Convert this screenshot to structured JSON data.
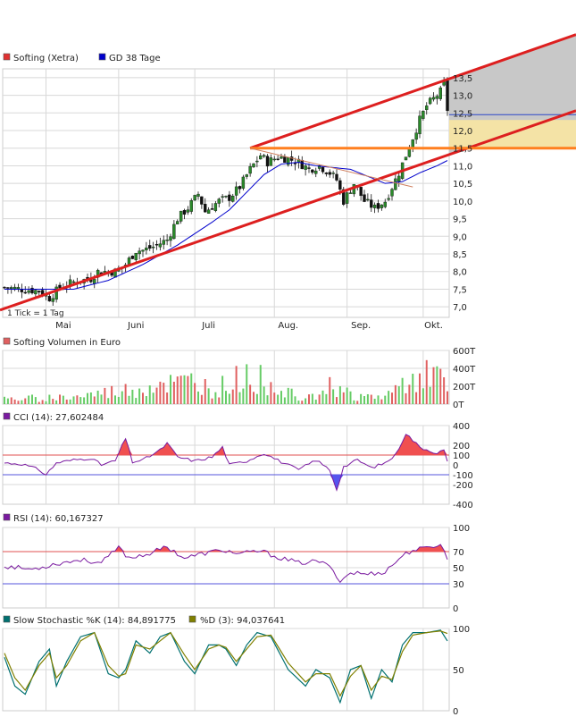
{
  "colors": {
    "price_legend": "#e03030",
    "ma_legend": "#0000cc",
    "up_candle": "#2a8a2a",
    "down_candle": "#111111",
    "ma_line": "#0000cc",
    "channel": "#dd1f1f",
    "horizontal_line": "#ff7f1f",
    "shade_gray": "#c8c8c8",
    "shade_yellow": "#f4e3a6",
    "volume_up": "#66cc66",
    "volume_down": "#e06060",
    "indicator_line": "#7a1aa0",
    "cci_fill_pos": "#f05050",
    "cci_fill_neg": "#5555ee",
    "stoch_k": "#007070",
    "stoch_d": "#808000",
    "ref_red": "#e05050",
    "ref_blue": "#5555dd",
    "grid": "#d8d8d8"
  },
  "price_panel": {
    "legend_price": "Softing (Xetra)",
    "legend_ma": "GD 38 Tage",
    "tick_note": "1 Tick = 1 Tag",
    "y_ticks": [
      "13,5",
      "13,0",
      "12,5",
      "12,0",
      "11,5",
      "11,0",
      "10,5",
      "10,0",
      "9,5",
      "9,0",
      "8,5",
      "8,0",
      "7,5",
      "7,0"
    ],
    "x_ticks": [
      "Mai",
      "Juni",
      "Juli",
      "Aug.",
      "Sep.",
      "Okt."
    ]
  },
  "volume_panel": {
    "legend": "Softing Volumen in Euro",
    "y_ticks": [
      "600T",
      "400T",
      "200T",
      "0T"
    ]
  },
  "cci_panel": {
    "legend": "CCI (14): 27,602484",
    "y_ticks": [
      "400",
      "200",
      "100",
      "0",
      "-100",
      "-200",
      "-400"
    ]
  },
  "rsi_panel": {
    "legend": "RSI (14): 60,167327",
    "y_ticks": [
      "100",
      "70",
      "50",
      "30",
      "0"
    ]
  },
  "stoch_panel": {
    "legend_k": "Slow Stochastic %K (14): 84,891775",
    "legend_d": "%D (3): 94,037641",
    "y_ticks": [
      "100",
      "50",
      "0"
    ]
  },
  "chart_data": [
    {
      "type": "candlestick",
      "title": "Softing (Xetra)",
      "x_range": [
        "mid-April",
        "early October"
      ],
      "ylim": [
        6.7,
        13.75
      ],
      "months": [
        "Mai",
        "Juni",
        "Juli",
        "Aug.",
        "Sep.",
        "Okt."
      ],
      "close_path": [
        [
          0,
          7.55
        ],
        [
          5,
          7.5
        ],
        [
          10,
          7.45
        ],
        [
          13,
          7.25
        ],
        [
          16,
          7.55
        ],
        [
          20,
          7.7
        ],
        [
          25,
          7.8
        ],
        [
          27,
          8.0
        ],
        [
          32,
          8.0
        ],
        [
          35,
          8.2
        ],
        [
          38,
          8.6
        ],
        [
          40,
          8.6
        ],
        [
          43,
          8.7
        ],
        [
          47,
          8.9
        ],
        [
          50,
          9.5
        ],
        [
          53,
          9.8
        ],
        [
          56,
          10.2
        ],
        [
          58,
          9.7
        ],
        [
          62,
          10.0
        ],
        [
          65,
          10.1
        ],
        [
          68,
          10.4
        ],
        [
          71,
          10.9
        ],
        [
          74,
          11.3
        ],
        [
          76,
          11.1
        ],
        [
          79,
          11.25
        ],
        [
          82,
          11.2
        ],
        [
          85,
          11.1
        ],
        [
          88,
          10.9
        ],
        [
          91,
          11.0
        ],
        [
          94,
          10.8
        ],
        [
          96,
          10.6
        ],
        [
          98,
          10.0
        ],
        [
          101,
          10.5
        ],
        [
          104,
          10.0
        ],
        [
          107,
          9.8
        ],
        [
          110,
          10.0
        ],
        [
          112,
          10.4
        ],
        [
          114,
          10.8
        ],
        [
          116,
          11.3
        ],
        [
          118,
          11.8
        ],
        [
          120,
          12.3
        ],
        [
          122,
          12.7
        ],
        [
          124,
          12.9
        ],
        [
          126,
          13.1
        ],
        [
          127,
          13.3
        ],
        [
          128,
          12.6
        ]
      ],
      "moving_average": {
        "name": "GD 38 Tage",
        "path": [
          [
            0,
            7.5
          ],
          [
            20,
            7.5
          ],
          [
            30,
            7.75
          ],
          [
            40,
            8.2
          ],
          [
            50,
            8.75
          ],
          [
            60,
            9.4
          ],
          [
            65,
            9.75
          ],
          [
            70,
            10.25
          ],
          [
            75,
            10.75
          ],
          [
            80,
            11.05
          ],
          [
            85,
            11.1
          ],
          [
            90,
            11.0
          ],
          [
            95,
            10.95
          ],
          [
            100,
            10.9
          ],
          [
            105,
            10.7
          ],
          [
            110,
            10.5
          ],
          [
            115,
            10.55
          ],
          [
            120,
            10.8
          ],
          [
            125,
            11.0
          ],
          [
            128,
            11.15
          ]
        ]
      },
      "channel_upper": [
        [
          71,
          11.5
        ],
        [
          128,
          13.45
        ]
      ],
      "channel_lower": [
        [
          0,
          6.95
        ],
        [
          128,
          11.3
        ]
      ],
      "horizontal_level": 11.5
    },
    {
      "type": "bar",
      "title": "Softing Volumen in Euro",
      "ylim": [
        0,
        600
      ],
      "unit": "T",
      "profile": [
        [
          0,
          60
        ],
        [
          10,
          80
        ],
        [
          20,
          90
        ],
        [
          30,
          150
        ],
        [
          40,
          200
        ],
        [
          45,
          280
        ],
        [
          50,
          250
        ],
        [
          55,
          300
        ],
        [
          60,
          180
        ],
        [
          65,
          260
        ],
        [
          70,
          380
        ],
        [
          75,
          300
        ],
        [
          80,
          200
        ],
        [
          85,
          120
        ],
        [
          90,
          150
        ],
        [
          95,
          250
        ],
        [
          100,
          120
        ],
        [
          105,
          90
        ],
        [
          110,
          100
        ],
        [
          115,
          250
        ],
        [
          120,
          450
        ],
        [
          125,
          350
        ],
        [
          128,
          200
        ]
      ]
    },
    {
      "type": "area",
      "title": "CCI (14)",
      "ylim": [
        -400,
        400
      ],
      "reference_lines": [
        100,
        -100
      ],
      "path": [
        [
          0,
          20
        ],
        [
          5,
          10
        ],
        [
          10,
          -50
        ],
        [
          12,
          -100
        ],
        [
          15,
          20
        ],
        [
          20,
          50
        ],
        [
          25,
          70
        ],
        [
          28,
          0
        ],
        [
          32,
          40
        ],
        [
          35,
          270
        ],
        [
          37,
          30
        ],
        [
          40,
          50
        ],
        [
          45,
          150
        ],
        [
          47,
          220
        ],
        [
          50,
          80
        ],
        [
          55,
          40
        ],
        [
          60,
          80
        ],
        [
          63,
          180
        ],
        [
          65,
          0
        ],
        [
          70,
          40
        ],
        [
          75,
          120
        ],
        [
          80,
          30
        ],
        [
          85,
          -50
        ],
        [
          90,
          50
        ],
        [
          94,
          -50
        ],
        [
          96,
          -250
        ],
        [
          98,
          -20
        ],
        [
          102,
          50
        ],
        [
          106,
          -30
        ],
        [
          110,
          20
        ],
        [
          113,
          100
        ],
        [
          116,
          320
        ],
        [
          120,
          180
        ],
        [
          125,
          120
        ],
        [
          127,
          150
        ],
        [
          128,
          27.6
        ]
      ]
    },
    {
      "type": "line",
      "title": "RSI (14)",
      "ylim": [
        0,
        100
      ],
      "reference_lines": [
        70,
        30
      ],
      "path": [
        [
          0,
          52
        ],
        [
          8,
          48
        ],
        [
          15,
          55
        ],
        [
          22,
          60
        ],
        [
          28,
          56
        ],
        [
          33,
          75
        ],
        [
          36,
          62
        ],
        [
          42,
          68
        ],
        [
          47,
          76
        ],
        [
          52,
          62
        ],
        [
          58,
          68
        ],
        [
          63,
          72
        ],
        [
          68,
          67
        ],
        [
          74,
          71
        ],
        [
          79,
          63
        ],
        [
          85,
          56
        ],
        [
          91,
          58
        ],
        [
          95,
          48
        ],
        [
          97,
          33
        ],
        [
          100,
          44
        ],
        [
          105,
          42
        ],
        [
          110,
          45
        ],
        [
          115,
          65
        ],
        [
          118,
          72
        ],
        [
          122,
          74
        ],
        [
          126,
          80
        ],
        [
          128,
          60.2
        ]
      ]
    },
    {
      "type": "line",
      "title": "Slow Stochastic",
      "ylim": [
        0,
        100
      ],
      "series": [
        {
          "name": "Slow Stochastic %K (14)",
          "path": [
            [
              0,
              65
            ],
            [
              3,
              30
            ],
            [
              6,
              20
            ],
            [
              10,
              60
            ],
            [
              13,
              75
            ],
            [
              15,
              30
            ],
            [
              18,
              60
            ],
            [
              22,
              90
            ],
            [
              26,
              95
            ],
            [
              30,
              45
            ],
            [
              33,
              40
            ],
            [
              35,
              50
            ],
            [
              38,
              85
            ],
            [
              42,
              70
            ],
            [
              45,
              90
            ],
            [
              48,
              95
            ],
            [
              52,
              60
            ],
            [
              55,
              45
            ],
            [
              59,
              80
            ],
            [
              62,
              80
            ],
            [
              64,
              75
            ],
            [
              67,
              55
            ],
            [
              70,
              80
            ],
            [
              73,
              95
            ],
            [
              77,
              90
            ],
            [
              82,
              50
            ],
            [
              87,
              30
            ],
            [
              90,
              50
            ],
            [
              94,
              40
            ],
            [
              97,
              10
            ],
            [
              100,
              50
            ],
            [
              103,
              55
            ],
            [
              106,
              15
            ],
            [
              109,
              50
            ],
            [
              112,
              35
            ],
            [
              115,
              80
            ],
            [
              118,
              95
            ],
            [
              122,
              95
            ],
            [
              126,
              98
            ],
            [
              128,
              84.9
            ]
          ]
        },
        {
          "name": "%D (3)",
          "path": [
            [
              0,
              70
            ],
            [
              3,
              40
            ],
            [
              6,
              25
            ],
            [
              10,
              55
            ],
            [
              13,
              70
            ],
            [
              15,
              40
            ],
            [
              18,
              55
            ],
            [
              22,
              85
            ],
            [
              26,
              95
            ],
            [
              30,
              55
            ],
            [
              33,
              42
            ],
            [
              35,
              45
            ],
            [
              38,
              80
            ],
            [
              42,
              75
            ],
            [
              45,
              85
            ],
            [
              48,
              95
            ],
            [
              52,
              68
            ],
            [
              55,
              50
            ],
            [
              59,
              75
            ],
            [
              62,
              80
            ],
            [
              64,
              77
            ],
            [
              67,
              60
            ],
            [
              70,
              75
            ],
            [
              73,
              90
            ],
            [
              77,
              92
            ],
            [
              82,
              58
            ],
            [
              87,
              35
            ],
            [
              90,
              45
            ],
            [
              94,
              45
            ],
            [
              97,
              18
            ],
            [
              100,
              42
            ],
            [
              103,
              55
            ],
            [
              106,
              25
            ],
            [
              109,
              42
            ],
            [
              112,
              38
            ],
            [
              115,
              72
            ],
            [
              118,
              92
            ],
            [
              122,
              95
            ],
            [
              126,
              97
            ],
            [
              128,
              94.0
            ]
          ]
        }
      ]
    }
  ]
}
